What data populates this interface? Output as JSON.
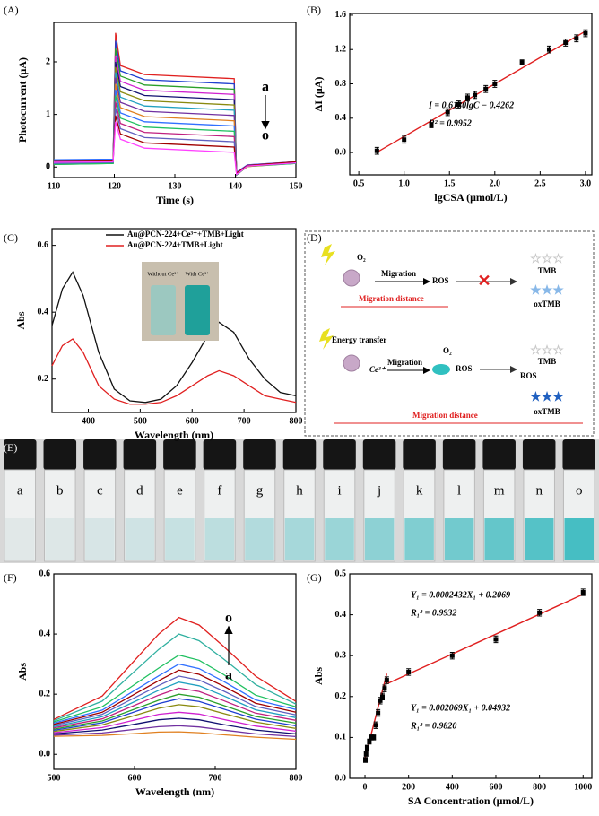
{
  "chart_data": [
    {
      "type": "line",
      "panel": "(A)",
      "xlabel": "Time (s)",
      "ylabel": "Photocurrent (μA)",
      "xlim": [
        110,
        150
      ],
      "ylim": [
        -0.2,
        2.75
      ],
      "xticks": [
        110,
        120,
        130,
        140,
        150
      ],
      "yticks": [
        0,
        1,
        2
      ],
      "annotations": [
        "a",
        "o"
      ],
      "x": [
        110,
        119.8,
        120.2,
        121,
        125,
        139.8,
        140.2,
        142,
        150
      ],
      "series": [
        {
          "color": "#e0201f",
          "values": [
            0.08,
            0.1,
            2.55,
            1.93,
            1.76,
            1.68,
            -0.15,
            0.02,
            0.08
          ]
        },
        {
          "color": "#1f3fd0",
          "values": [
            0.12,
            0.13,
            2.4,
            1.83,
            1.66,
            1.58,
            -0.12,
            0.03,
            0.09
          ]
        },
        {
          "color": "#2aa02a",
          "values": [
            0.05,
            0.07,
            2.25,
            1.73,
            1.56,
            1.48,
            -0.14,
            0.01,
            0.07
          ]
        },
        {
          "color": "#d020d0",
          "values": [
            0.1,
            0.12,
            2.12,
            1.63,
            1.46,
            1.38,
            -0.1,
            0.04,
            0.1
          ]
        },
        {
          "color": "#101070",
          "values": [
            0.07,
            0.09,
            2.0,
            1.53,
            1.36,
            1.28,
            -0.15,
            0.02,
            0.08
          ]
        },
        {
          "color": "#8a8a10",
          "values": [
            0.13,
            0.14,
            1.9,
            1.43,
            1.26,
            1.18,
            -0.11,
            0.03,
            0.1
          ]
        },
        {
          "color": "#20a0c0",
          "values": [
            0.06,
            0.08,
            1.8,
            1.33,
            1.16,
            1.08,
            -0.13,
            0.02,
            0.07
          ]
        },
        {
          "color": "#7030a0",
          "values": [
            0.11,
            0.12,
            1.7,
            1.23,
            1.06,
            0.98,
            -0.12,
            0.03,
            0.09
          ]
        },
        {
          "color": "#e08020",
          "values": [
            0.08,
            0.1,
            1.58,
            1.13,
            0.96,
            0.88,
            -0.14,
            0.01,
            0.08
          ]
        },
        {
          "color": "#3070ff",
          "values": [
            0.14,
            0.15,
            1.47,
            1.03,
            0.86,
            0.78,
            -0.1,
            0.04,
            0.1
          ]
        },
        {
          "color": "#20c060",
          "values": [
            0.05,
            0.07,
            1.36,
            0.93,
            0.76,
            0.68,
            -0.15,
            0.02,
            0.07
          ]
        },
        {
          "color": "#c02080",
          "values": [
            0.1,
            0.11,
            1.24,
            0.83,
            0.66,
            0.58,
            -0.11,
            0.03,
            0.09
          ]
        },
        {
          "color": "#6060c0",
          "values": [
            0.07,
            0.09,
            1.12,
            0.73,
            0.56,
            0.48,
            -0.13,
            0.02,
            0.08
          ]
        },
        {
          "color": "#a00000",
          "values": [
            0.12,
            0.13,
            0.98,
            0.63,
            0.46,
            0.38,
            -0.12,
            0.03,
            0.1
          ]
        },
        {
          "color": "#ff40ff",
          "values": [
            0.09,
            0.1,
            0.86,
            0.53,
            0.36,
            0.28,
            -0.14,
            0.02,
            0.08
          ]
        }
      ]
    },
    {
      "type": "scatter",
      "panel": "(B)",
      "xlabel": "lgCSA (μmol/L)",
      "ylabel": "ΔI (μA)",
      "xlim": [
        0.4,
        3.07
      ],
      "ylim": [
        -0.26,
        1.62
      ],
      "xticks": [
        0.5,
        {
          "value": 1,
          "label": "1.0"
        },
        1.5,
        {
          "value": 2,
          "label": "2.0"
        },
        2.5,
        {
          "value": 3,
          "label": "3.0"
        }
      ],
      "yticks": [
        {
          "value": 0,
          "label": "0.0"
        },
        0.4,
        0.8,
        1.2,
        1.6
      ],
      "annotations": [
        "I = 0.6130lgC − 0.4262",
        "R² = 0.9952"
      ],
      "color": "#000000",
      "x": [
        0.7,
        1.0,
        1.3,
        1.48,
        1.6,
        1.7,
        1.78,
        1.9,
        2.0,
        2.3,
        2.6,
        2.78,
        2.9,
        3.0
      ],
      "values": [
        0.02,
        0.15,
        0.32,
        0.47,
        0.56,
        0.64,
        0.67,
        0.74,
        0.8,
        1.05,
        1.2,
        1.28,
        1.33,
        1.39
      ],
      "errors": [
        0.04,
        0.04,
        0.03,
        0.04,
        0.04,
        0.04,
        0.04,
        0.04,
        0.04,
        0.03,
        0.04,
        0.04,
        0.04,
        0.04
      ],
      "fits": [
        {
          "color": "#e02020",
          "x": [
            0.7,
            3.0
          ],
          "values": [
            0.003,
            1.413
          ]
        }
      ]
    },
    {
      "type": "line",
      "panel": "(C)",
      "xlabel": "Wavelength (nm)",
      "ylabel": "Abs",
      "xlim": [
        330,
        800
      ],
      "ylim": [
        0.1,
        0.65
      ],
      "xticks": [
        400,
        500,
        600,
        700,
        800
      ],
      "yticks": [
        0.2,
        0.4,
        0.6
      ],
      "legend": "upper right",
      "inset": [
        "Without Ce³⁺",
        "With Ce³⁺"
      ],
      "x": [
        330,
        350,
        370,
        390,
        420,
        450,
        480,
        510,
        540,
        570,
        600,
        630,
        652,
        680,
        710,
        740,
        770,
        800
      ],
      "series": [
        {
          "name": "Au@PCN-224+Ce³⁺+TMB+Light",
          "color": "#111111",
          "values": [
            0.36,
            0.47,
            0.52,
            0.45,
            0.28,
            0.17,
            0.135,
            0.13,
            0.14,
            0.18,
            0.25,
            0.33,
            0.37,
            0.34,
            0.26,
            0.2,
            0.16,
            0.15
          ]
        },
        {
          "name": "Au@PCN-224+TMB+Light",
          "color": "#e02020",
          "values": [
            0.24,
            0.3,
            0.32,
            0.28,
            0.18,
            0.14,
            0.125,
            0.125,
            0.13,
            0.15,
            0.18,
            0.21,
            0.225,
            0.21,
            0.18,
            0.15,
            0.14,
            0.13
          ]
        }
      ]
    },
    {
      "type": "line",
      "panel": "(F)",
      "xlabel": "Wavelength (nm)",
      "ylabel": "Abs",
      "xlim": [
        500,
        800
      ],
      "ylim": [
        -0.05,
        0.6
      ],
      "xticks": [
        500,
        600,
        700,
        800
      ],
      "yticks": [
        {
          "value": 0,
          "label": "0.0"
        },
        0.2,
        0.4,
        0.6
      ],
      "annotations": [
        "o",
        "a"
      ],
      "x": [
        500,
        560,
        600,
        630,
        655,
        680,
        710,
        750,
        800
      ],
      "series": [
        {
          "color": "#e08020",
          "values": [
            0.06,
            0.063,
            0.069,
            0.074,
            0.075,
            0.072,
            0.065,
            0.057,
            0.05
          ]
        },
        {
          "color": "#7030a0",
          "values": [
            0.064,
            0.071,
            0.083,
            0.092,
            0.095,
            0.091,
            0.081,
            0.068,
            0.059
          ]
        },
        {
          "color": "#101070",
          "values": [
            0.068,
            0.081,
            0.1,
            0.115,
            0.12,
            0.115,
            0.099,
            0.081,
            0.068
          ]
        },
        {
          "color": "#d020d0",
          "values": [
            0.072,
            0.089,
            0.114,
            0.133,
            0.14,
            0.134,
            0.116,
            0.094,
            0.077
          ]
        },
        {
          "color": "#8a8a10",
          "values": [
            0.076,
            0.098,
            0.129,
            0.153,
            0.165,
            0.158,
            0.136,
            0.107,
            0.086
          ]
        },
        {
          "color": "#1f3fd0",
          "values": [
            0.08,
            0.105,
            0.141,
            0.169,
            0.185,
            0.176,
            0.151,
            0.117,
            0.095
          ]
        },
        {
          "color": "#2aa02a",
          "values": [
            0.084,
            0.111,
            0.15,
            0.18,
            0.2,
            0.19,
            0.163,
            0.126,
            0.104
          ]
        },
        {
          "color": "#c02080",
          "values": [
            0.088,
            0.118,
            0.163,
            0.197,
            0.22,
            0.209,
            0.179,
            0.137,
            0.113
          ]
        },
        {
          "color": "#20a0c0",
          "values": [
            0.092,
            0.125,
            0.175,
            0.213,
            0.24,
            0.228,
            0.195,
            0.148,
            0.122
          ]
        },
        {
          "color": "#6060c0",
          "values": [
            0.096,
            0.133,
            0.188,
            0.229,
            0.26,
            0.247,
            0.211,
            0.159,
            0.131
          ]
        },
        {
          "color": "#a00000",
          "values": [
            0.1,
            0.14,
            0.2,
            0.245,
            0.28,
            0.266,
            0.227,
            0.17,
            0.14
          ]
        },
        {
          "color": "#3070ff",
          "values": [
            0.104,
            0.147,
            0.212,
            0.261,
            0.3,
            0.285,
            0.243,
            0.181,
            0.149
          ]
        },
        {
          "color": "#20c060",
          "values": [
            0.108,
            0.158,
            0.232,
            0.287,
            0.33,
            0.313,
            0.266,
            0.197,
            0.158
          ]
        },
        {
          "color": "#30b0a0",
          "values": [
            0.112,
            0.177,
            0.276,
            0.349,
            0.4,
            0.378,
            0.318,
            0.232,
            0.167
          ]
        },
        {
          "color": "#e0201f",
          "values": [
            0.116,
            0.194,
            0.312,
            0.4,
            0.455,
            0.43,
            0.36,
            0.26,
            0.176
          ]
        }
      ]
    },
    {
      "type": "scatter",
      "panel": "(G)",
      "xlabel": "SA Concentration (μmol/L)",
      "ylabel": "Abs",
      "xlim": [
        -70,
        1040
      ],
      "ylim": [
        0,
        0.5
      ],
      "xticks": [
        0,
        200,
        400,
        600,
        800,
        1000
      ],
      "yticks": [
        {
          "value": 0,
          "label": "0.0"
        },
        0.1,
        0.2,
        0.3,
        0.4,
        0.5
      ],
      "annotations": [
        "Y₁ = 0.0002432X₁ + 0.2069",
        "R₁² = 0.9932",
        "Y₁ = 0.002069X₁ + 0.04932",
        "R₁² = 0.9820"
      ],
      "color": "#000000",
      "x": [
        2,
        5,
        10,
        20,
        30,
        40,
        50,
        60,
        70,
        80,
        90,
        100,
        200,
        400,
        600,
        800,
        1000
      ],
      "values": [
        0.045,
        0.06,
        0.075,
        0.09,
        0.1,
        0.1,
        0.13,
        0.16,
        0.19,
        0.2,
        0.22,
        0.24,
        0.26,
        0.3,
        0.34,
        0.405,
        0.455
      ],
      "errors": [
        0.006,
        0.006,
        0.006,
        0.006,
        0.006,
        0.006,
        0.008,
        0.008,
        0.008,
        0.008,
        0.008,
        0.008,
        0.008,
        0.008,
        0.008,
        0.008,
        0.008
      ],
      "fits": [
        {
          "color": "#e02020",
          "x": [
            0,
            100
          ],
          "values": [
            0.049,
            0.256
          ]
        },
        {
          "color": "#e02020",
          "x": [
            100,
            1000
          ],
          "values": [
            0.231,
            0.45
          ]
        }
      ]
    }
  ],
  "diagram": {
    "panel": "(D)",
    "top": {
      "o2": "O₂",
      "migration": "Migration",
      "ros": "ROS",
      "tmb": "TMB",
      "oxtmb": "oxTMB",
      "distance": "Migration distance"
    },
    "bottom": {
      "energy": "Energy transfer",
      "ce": "Ce³⁺",
      "migration": "Migration",
      "o2": "O₂",
      "ros1": "ROS",
      "ros2": "ROS",
      "tmb": "TMB",
      "oxtmb": "oxTMB",
      "distance": "Migration distance"
    }
  },
  "photo": {
    "panel": "(E)",
    "vials": [
      "a",
      "b",
      "c",
      "d",
      "e",
      "f",
      "g",
      "h",
      "i",
      "j",
      "k",
      "l",
      "m",
      "n",
      "o"
    ]
  }
}
